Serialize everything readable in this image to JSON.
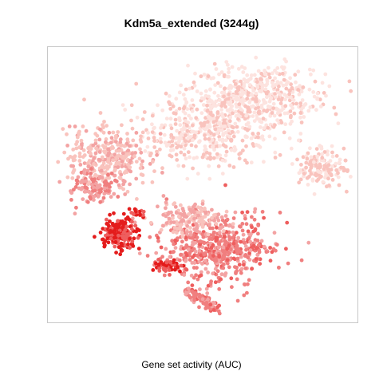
{
  "chart_data": {
    "type": "scatter",
    "title": "Kdm5a_extended (3244g)",
    "xlabel": "Gene set activity (AUC)",
    "ylabel": "",
    "grid": false,
    "legend": "none",
    "colors": {
      "very_low": "#fde3df",
      "low": "#f9c3bd",
      "medium_low": "#f3a3a3",
      "medium": "#f07f7f",
      "high": "#ee5e5e",
      "very_high": "#e41c1c"
    }
  }
}
